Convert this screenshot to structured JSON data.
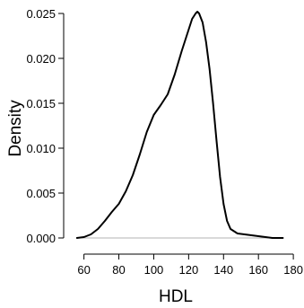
{
  "chart_data": {
    "type": "line",
    "title": "",
    "xlabel": "HDL",
    "ylabel": "Density",
    "xlim": [
      53,
      182
    ],
    "ylim": [
      -0.0008,
      0.0255
    ],
    "x_ticks": [
      60,
      80,
      100,
      120,
      140,
      160,
      180
    ],
    "y_ticks": [
      0.0,
      0.005,
      0.01,
      0.015,
      0.02,
      0.025
    ],
    "x_tick_labels": [
      "60",
      "80",
      "100",
      "120",
      "140",
      "160",
      "180"
    ],
    "y_tick_labels": [
      "0.000",
      "0.005",
      "0.010",
      "0.015",
      "0.020",
      "0.025"
    ],
    "baseline": 0,
    "series": [
      {
        "x": [
          56,
          60,
          64,
          68,
          72,
          76,
          80,
          84,
          88,
          92,
          96,
          100,
          104,
          108,
          112,
          116,
          120,
          122,
          124,
          125,
          126,
          128,
          130,
          132,
          134,
          136,
          138,
          140,
          142,
          144,
          148,
          152,
          156,
          160,
          164,
          168,
          172,
          174
        ],
        "y": [
          0.0,
          0.0001,
          0.0004,
          0.001,
          0.0019,
          0.0029,
          0.0038,
          0.0052,
          0.007,
          0.0093,
          0.0118,
          0.0137,
          0.0148,
          0.016,
          0.0182,
          0.0208,
          0.0232,
          0.0244,
          0.025,
          0.0252,
          0.025,
          0.024,
          0.0218,
          0.0188,
          0.015,
          0.0108,
          0.0068,
          0.0038,
          0.0019,
          0.001,
          0.0005,
          0.0004,
          0.0003,
          0.0002,
          0.0001,
          0.0,
          0.0,
          0.0
        ],
        "color": "#000000"
      }
    ],
    "grid": false
  }
}
